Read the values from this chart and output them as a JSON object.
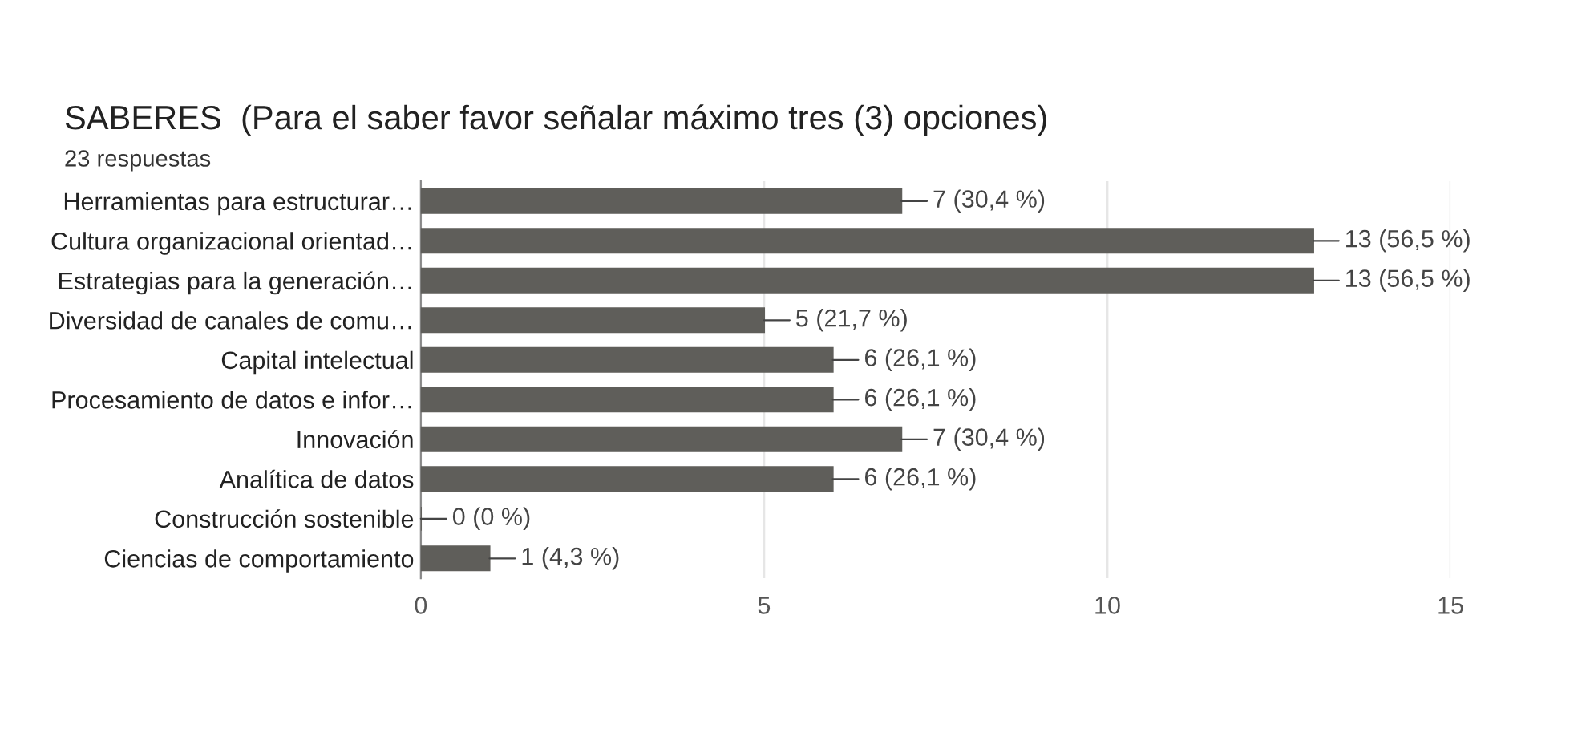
{
  "chart_data": {
    "type": "bar",
    "orientation": "horizontal",
    "title": "SABERES  (Para el saber favor señalar máximo tres (3) opciones)",
    "subtitle": "23 respuestas",
    "categories": [
      "Herramientas para estructurar…",
      "Cultura organizacional orientad…",
      "Estrategias para la generación…",
      "Diversidad de canales de comu…",
      "Capital intelectual",
      "Procesamiento de datos e infor…",
      "Innovación",
      "Analítica de datos",
      "Construcción sostenible",
      "Ciencias de comportamiento"
    ],
    "values": [
      7,
      13,
      13,
      5,
      6,
      6,
      7,
      6,
      0,
      1
    ],
    "value_labels": [
      "7 (30,4 %)",
      "13 (56,5 %)",
      "13 (56,5 %)",
      "5 (21,7 %)",
      "6 (26,1 %)",
      "6 (26,1 %)",
      "7 (30,4 %)",
      "6 (26,1 %)",
      "0 (0 %)",
      "1 (4,3 %)"
    ],
    "color": "#5f5e5a",
    "xlim": [
      0,
      15
    ],
    "xticks": [
      0,
      5,
      10,
      15
    ],
    "grid": "x"
  }
}
